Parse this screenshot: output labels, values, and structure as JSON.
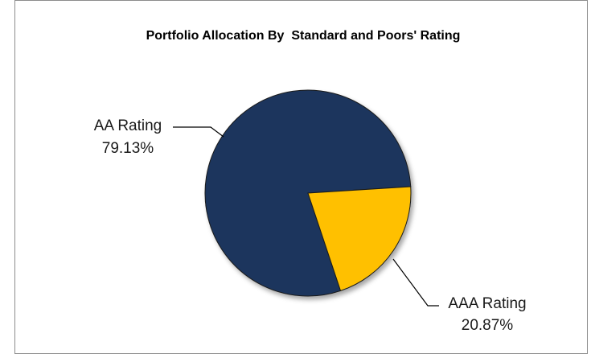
{
  "chart_data": {
    "type": "pie",
    "title": "Portfolio Allocation By  Standard and Poors' Rating",
    "slices": [
      {
        "label": "AA Rating",
        "value_label": "79.13%",
        "value": 79.13,
        "color": "#1b365d"
      },
      {
        "label": "AAA Rating",
        "value_label": "20.87%",
        "value": 20.87,
        "color": "#ffc000"
      }
    ],
    "legend": "none",
    "data_labels": "outside with leader lines"
  }
}
